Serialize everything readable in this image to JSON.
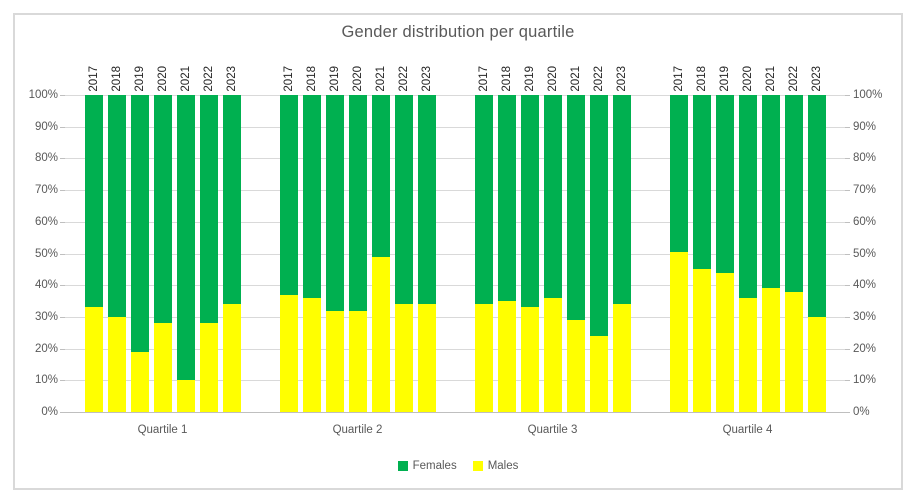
{
  "chart_data": {
    "type": "bar",
    "stacked": true,
    "orientation": "vertical",
    "title": "Gender distribution per quartile",
    "categories": [
      "Quartile 1",
      "Quartile 2",
      "Quartile 3",
      "Quartile 4"
    ],
    "years": [
      "2017",
      "2018",
      "2019",
      "2020",
      "2021",
      "2022",
      "2023"
    ],
    "series": [
      {
        "name": "Females",
        "color": "#00B050",
        "values": [
          [
            67,
            70,
            81,
            72,
            90,
            72,
            66
          ],
          [
            63,
            64,
            68,
            68,
            51,
            66,
            66
          ],
          [
            66,
            65,
            67,
            64,
            71,
            76,
            66
          ],
          [
            49.5,
            55,
            56,
            64,
            61,
            62,
            70
          ]
        ]
      },
      {
        "name": "Males",
        "color": "#FFFF00",
        "values": [
          [
            33,
            30,
            19,
            28,
            10,
            28,
            34
          ],
          [
            37,
            36,
            32,
            32,
            49,
            34,
            34
          ],
          [
            34,
            35,
            33,
            36,
            29,
            24,
            34
          ],
          [
            50.5,
            45,
            44,
            36,
            39,
            38,
            30
          ]
        ]
      }
    ],
    "ylim": [
      0,
      100
    ],
    "ytick_step": 10,
    "ytick_labels": [
      "0%",
      "10%",
      "20%",
      "30%",
      "40%",
      "50%",
      "60%",
      "70%",
      "80%",
      "90%",
      "100%"
    ],
    "grid": true,
    "y_axis_sides": [
      "left",
      "right"
    ],
    "legend_position": "bottom"
  },
  "legend": {
    "items": [
      {
        "label": "Females",
        "color": "#00B050"
      },
      {
        "label": "Males",
        "color": "#FFFF00"
      }
    ]
  },
  "colors": {
    "females": "#00B050",
    "males": "#FFFF00",
    "gridline": "#D9D9D9",
    "axis_text": "#595959",
    "year_text": "#262626",
    "frame_border": "#D9D9D9",
    "background": "#FFFFFF"
  }
}
